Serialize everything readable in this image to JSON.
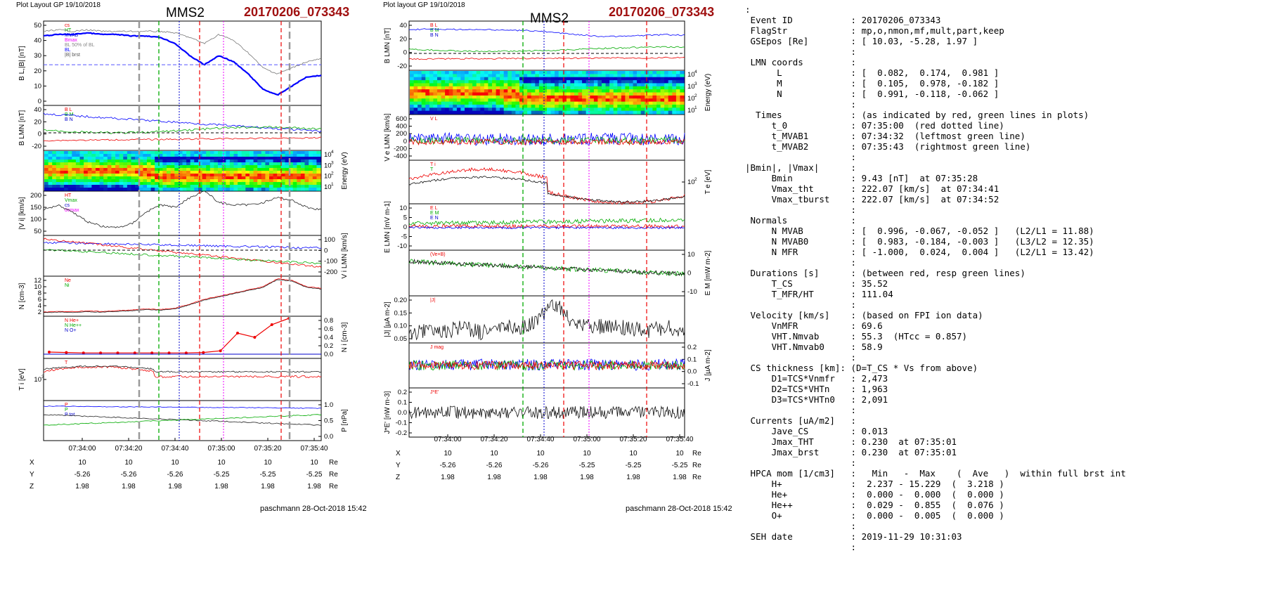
{
  "left": {
    "header": "Plot Layout GP 19/10/2018",
    "title": "MMS2",
    "event": "20170206_073343",
    "footer": "paschmann 28-Oct-2018 15:42",
    "xticks": [
      "07:34:00",
      "07:34:20",
      "07:34:40",
      "07:35:00",
      "07:35:20",
      "07:35:40"
    ],
    "coord_labels": [
      "X",
      "Y",
      "Z"
    ],
    "coord_rows": [
      [
        "10",
        "10",
        "10",
        "10",
        "10",
        "10"
      ],
      [
        "-5.26",
        "-5.26",
        "-5.26",
        "-5.25",
        "-5.25",
        "-5.25"
      ],
      [
        "1.98",
        "1.98",
        "1.98",
        "1.98",
        "1.98",
        "1.98"
      ]
    ],
    "unit": "Re",
    "panels": [
      {
        "ylabel": "B_L,|B| [nT]",
        "side": "left",
        "ticks": [
          "50",
          "40",
          "30",
          "20",
          "10",
          "0"
        ],
        "legend": [
          "cs",
          "HT",
          "MVAB",
          "Bmax",
          "BL 50% of BL",
          "BL",
          "|B| brst"
        ]
      },
      {
        "ylabel": "B_LMN [nT]",
        "side": "left",
        "ticks": [
          "40",
          "20",
          "0",
          "-20"
        ],
        "legend": [
          "B_L",
          "B_M",
          "B_N"
        ]
      },
      {
        "ylabel": "Energy (eV)",
        "side": "right",
        "ticks": [
          "10^4",
          "10^3",
          "10^2",
          "10^1"
        ]
      },
      {
        "ylabel": "|V_i| [km/s]",
        "side": "left",
        "ticks": [
          "200",
          "150",
          "100",
          "50"
        ],
        "legend": [
          "HT",
          "Vmax",
          "cs",
          "dvmax"
        ]
      },
      {
        "ylabel": "V_i LMN [km/s]",
        "side": "right",
        "ticks": [
          "100",
          "0",
          "-100",
          "-200"
        ]
      },
      {
        "ylabel": "N [cm^-3]",
        "side": "left",
        "ticks": [
          "12",
          "10",
          "8",
          "6",
          "4",
          "2"
        ],
        "legend": [
          "Ne",
          "Ni"
        ]
      },
      {
        "ylabel": "N_i [cm^-3]",
        "side": "right",
        "ticks": [
          "0.8",
          "0.6",
          "0.4",
          "0.2",
          "0.0"
        ],
        "legend": [
          "N He+",
          "N He++",
          "N O+"
        ]
      },
      {
        "ylabel": "T_i [eV]",
        "side": "left",
        "ticks": [
          "10^3"
        ],
        "legend": [
          "T"
        ]
      },
      {
        "ylabel": "P [nPa]",
        "side": "right",
        "ticks": [
          "1.0",
          "0.5",
          "0.0"
        ],
        "legend": [
          "P",
          "P",
          "P_tot"
        ]
      }
    ]
  },
  "mid": {
    "header": "Plot layout GP 19/10/2018",
    "title": "MMS2",
    "event": "20170206_073343",
    "footer": "paschmann 28-Oct-2018 15:42",
    "xticks": [
      "07:34:00",
      "07:34:20",
      "07:34:40",
      "07:35:00",
      "07:35:20",
      "07:35:40"
    ],
    "coord_labels": [
      "X",
      "Y",
      "Z"
    ],
    "coord_rows": [
      [
        "10",
        "10",
        "10",
        "10",
        "10",
        "10"
      ],
      [
        "-5.26",
        "-5.26",
        "-5.26",
        "-5.25",
        "-5.25",
        "-5.25"
      ],
      [
        "1.98",
        "1.98",
        "1.98",
        "1.98",
        "1.98",
        "1.98"
      ]
    ],
    "unit": "Re",
    "panels": [
      {
        "ylabel": "B_LMN [nT]",
        "side": "left",
        "ticks": [
          "40",
          "20",
          "0",
          "-20"
        ],
        "legend": [
          "B_L",
          "B_M",
          "B_N"
        ]
      },
      {
        "ylabel": "Energy (eV)",
        "side": "right",
        "ticks": [
          "10^4",
          "10^3",
          "10^2",
          "10^1"
        ]
      },
      {
        "ylabel": "V_e LMN [km/s]",
        "side": "left",
        "ticks": [
          "600",
          "400",
          "200",
          "0",
          "-200",
          "-400"
        ],
        "legend": [
          "V_L"
        ]
      },
      {
        "ylabel": "T_e [eV]",
        "side": "right",
        "ticks": [
          "10^2"
        ],
        "legend": [
          "T_i",
          "T"
        ]
      },
      {
        "ylabel": "E_LMN [mV m^-1]",
        "side": "left",
        "ticks": [
          "10",
          "5",
          "0",
          "-5",
          "-10"
        ],
        "legend": [
          "E_L",
          "E_M",
          "E_N"
        ]
      },
      {
        "ylabel": "E_M [mW m^-2]",
        "side": "right",
        "ticks": [
          "10",
          "0",
          "-10"
        ],
        "legend": [
          "(Ve×B)"
        ]
      },
      {
        "ylabel": "|J| [µA m^-2]",
        "side": "left",
        "ticks": [
          "0.20",
          "0.15",
          "0.10",
          "0.05"
        ],
        "legend": [
          "|J|"
        ]
      },
      {
        "ylabel": "J [µA m^-2]",
        "side": "right",
        "ticks": [
          "0.2",
          "0.1",
          "0.0",
          "-0.1"
        ],
        "legend": [
          "J_mag"
        ]
      },
      {
        "ylabel": "J*E' [nW m^-3]",
        "side": "left",
        "ticks": [
          "0.2",
          "0.1",
          "0.0",
          "-0.1",
          "-0.2"
        ],
        "legend": [
          "J*E'"
        ]
      }
    ]
  },
  "info_lines": [
    ":",
    " Event ID           : 20170206_073343",
    " FlagStr            : mp,o,nmon,mf,mult,part,keep",
    " GSEpos [Re]        : [ 10.03, -5.28, 1.97 ]",
    "                    :",
    " LMN coords         :",
    "      L             : [  0.082,  0.174,  0.981 ]",
    "      M             : [  0.105,  0.978, -0.182 ]",
    "      N             : [  0.991, -0.118, -0.062 ]",
    "                    :",
    "  Times             : (as indicated by red, green lines in plots)",
    "     t_0            : 07:35:00  (red dotted line)",
    "     t_MVAB1        : 07:34:32  (leftmost green line)",
    "     t_MVAB2        : 07:35:43  (rightmost green line)",
    "                    :",
    "|Bmin|, |Vmax|      :",
    "     Bmin           : 9.43 [nT]  at 07:35:28",
    "     Vmax_tht       : 222.07 [km/s]  at 07:34:41",
    "     Vmax_tburst    : 222.07 [km/s]  at 07:34:52",
    "                    :",
    " Normals            :",
    "     N MVAB         : [  0.996, -0.067, -0.052 ]   (L2/L1 = 11.88)",
    "     N MVAB0        : [  0.983, -0.184, -0.003 ]   (L3/L2 = 12.35)",
    "     N MFR          : [ -1.000,  0.024,  0.004 ]   (L2/L1 = 13.42)",
    "                    :",
    " Durations [s]      : (between red, resp green lines)",
    "     T_CS           : 35.52",
    "     T_MFR/HT       : 111.04",
    "                    :",
    " Velocity [km/s]    : (based on FPI ion data)",
    "     VnMFR          : 69.6",
    "     VHT.Nmvab      : 55.3  (HTcc = 0.857)",
    "     VHT.Nmvab0     : 58.9",
    "                    :",
    " CS thickness [km]: (D=T_CS * Vs from above)",
    "     D1=TCS*Vnmfr   : 2,473",
    "     D2=TCS*VHTn    : 1,963",
    "     D3=TCS*VHTn0   : 2,091",
    "                    :",
    " Currents [uA/m2]   :",
    "     Jave_CS        : 0.013",
    "     Jmax_THT       : 0.230  at 07:35:01",
    "     Jmax_brst      : 0.230  at 07:35:01",
    "                    :",
    " HPCA mom [1/cm3]   :   Min   -  Max    (  Ave   )  within full brst int",
    "     H+             :  2.237 - 15.229  (  3.218 )",
    "     He+            :  0.000 -  0.000  (  0.000 )",
    "     He++           :  0.029 -  0.855  (  0.076 )",
    "     O+             :  0.000 -  0.005  (  0.000 )",
    "                    :",
    " SEH date           : 2019-11-29 10:31:03",
    "                    :"
  ],
  "chart_data": [
    {
      "type": "line",
      "title": "MMS2 20170206_073343 (left stack)",
      "x_range": [
        "07:33:43",
        "07:35:43"
      ],
      "series": [
        {
          "name": "B_L",
          "values": [
            43,
            44,
            44,
            45,
            44,
            44,
            43,
            43,
            42,
            38,
            30,
            24,
            30,
            26,
            18,
            8,
            4,
            10,
            16,
            17
          ]
        },
        {
          "name": "|B| brst",
          "values": [
            46,
            47,
            46,
            47,
            46,
            46,
            46,
            46,
            46,
            45,
            42,
            38,
            44,
            40,
            32,
            22,
            18,
            22,
            26,
            28
          ]
        },
        {
          "name": "|Vi|",
          "values": [
            140,
            160,
            130,
            90,
            70,
            65,
            80,
            130,
            160,
            150,
            190,
            220,
            170,
            160,
            160,
            170,
            190,
            180,
            150,
            140
          ]
        },
        {
          "name": "Ne",
          "values": [
            2,
            2.2,
            2.1,
            2.3,
            2.2,
            2.4,
            2.6,
            3,
            2.8,
            3.2,
            4.5,
            6,
            7,
            8,
            9,
            10,
            12.5,
            12,
            10,
            9.5
          ]
        },
        {
          "name": "N He++",
          "values": [
            0.05,
            0.04,
            0.03,
            0.03,
            0.03,
            0.03,
            0.03,
            0.03,
            0.03,
            0.04,
            0.08,
            0.5,
            0.4,
            0.7,
            0.85
          ]
        }
      ]
    },
    {
      "type": "line",
      "title": "MMS2 20170206_073343 (middle stack)",
      "x_range": [
        "07:33:43",
        "07:35:43"
      ],
      "series": [
        {
          "name": "B_L",
          "values": [
            40,
            42,
            41,
            40,
            40,
            39,
            38,
            36,
            30,
            25,
            20,
            18,
            20,
            22,
            24,
            22
          ]
        },
        {
          "name": "|J|",
          "values": [
            0.04,
            0.07,
            0.06,
            0.08,
            0.05,
            0.09,
            0.07,
            0.12,
            0.2,
            0.1,
            0.08,
            0.09,
            0.07,
            0.06,
            0.08,
            0.05
          ]
        }
      ]
    }
  ]
}
